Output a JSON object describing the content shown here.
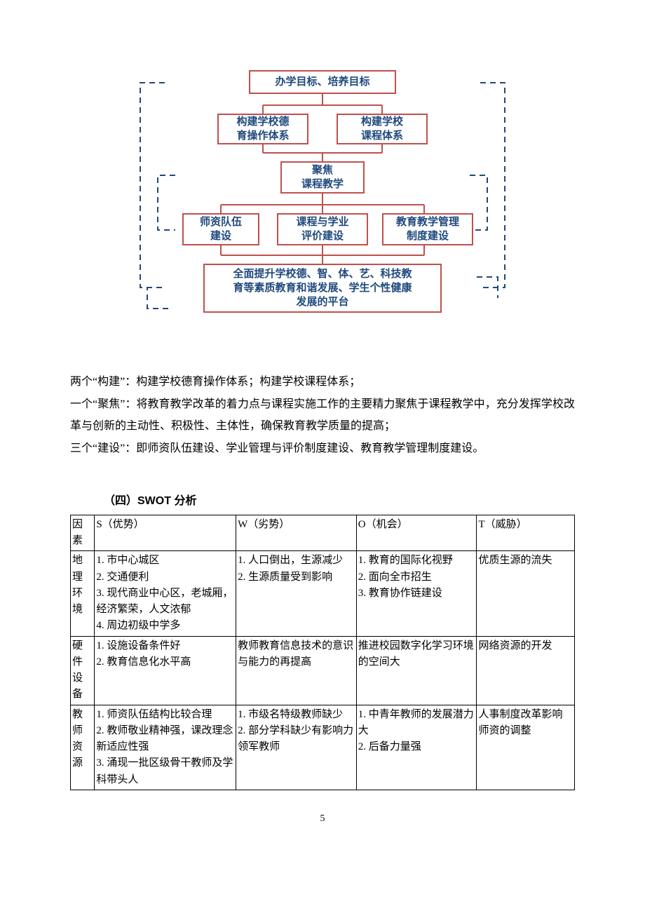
{
  "diagram": {
    "border_color": "#c0504d",
    "text_color": "#1f497d",
    "dashed_color": "#1f497d",
    "solid_color": "#c0504d",
    "boxes": {
      "top": {
        "text": "办学目标、培养目标"
      },
      "left2": {
        "text": "构建学校德\n育操作体系"
      },
      "right2": {
        "text": "构建学校\n课程体系"
      },
      "mid": {
        "text": "聚焦\n课程教学"
      },
      "b1": {
        "text": "师资队伍\n建设"
      },
      "b2": {
        "text": "课程与学业\n评价建设"
      },
      "b3": {
        "text": "教育教学管理\n制度建设"
      },
      "bottom": {
        "text": "全面提升学校德、智、体、艺、科技教\n育等素质教育和谐发展、学生个性健康\n发展的平台"
      }
    }
  },
  "paragraphs": [
    "两个“构建”：构建学校德育操作体系；构建学校课程体系；",
    "一个“聚焦”：将教育教学改革的着力点与课程实施工作的主要精力聚焦于课程教学中，充分发挥学校改革与创新的主动性、积极性、主体性，确保教育教学质量的提高；",
    "三个“建设”：即师资队伍建设、学业管理与评价制度建设、教育教学管理制度建设。"
  ],
  "section_title": "（四）SWOT 分析",
  "swot": {
    "headers": [
      "因素",
      "S（优势）",
      "W（劣势）",
      "O（机会）",
      "T（威胁）"
    ],
    "rows": [
      {
        "factor": "地理环境",
        "s": "1. 市中心城区\n2. 交通便利\n3. 现代商业中心区，老城厢，经济繁荣，人文浓郁\n4. 周边初级中学多",
        "w": "1. 人口倒出，生源减少\n2. 生源质量受到影响",
        "o": "1. 教育的国际化视野\n2. 面向全市招生\n3. 教育协作链建设",
        "t": "优质生源的流失"
      },
      {
        "factor": "硬件设备",
        "s": "1. 设施设备条件好\n2. 教育信息化水平高",
        "w": "教师教育信息技术的意识与能力的再提高",
        "o": "推进校园数字化学习环境的空间大",
        "t": "网络资源的开发"
      },
      {
        "factor": "教师资源",
        "s": "1. 师资队伍结构比较合理\n2. 教师敬业精神强，课改理念新适应性强\n3. 涌现一批区级骨干教师及学科带头人",
        "w": "1. 市级名特级教师缺少\n2. 部分学科缺少有影响力领军教师",
        "o": "1. 中青年教师的发展潜力大\n2. 后备力量强",
        "t": "人事制度改革影响师资的调整"
      }
    ]
  },
  "page_number": "5"
}
